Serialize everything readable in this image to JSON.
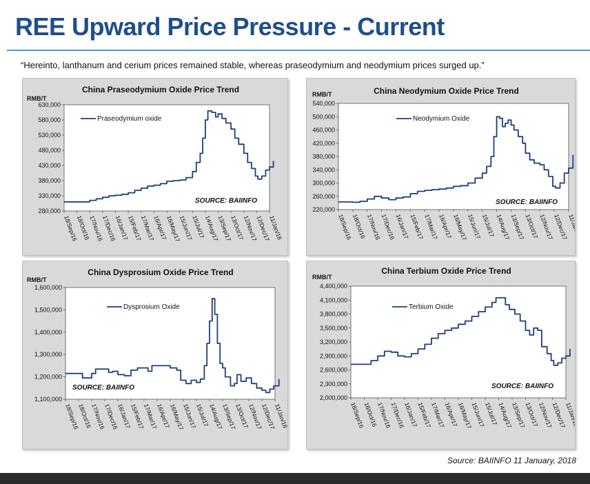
{
  "header": {
    "title": "REE Upward Price Pressure - Current",
    "quote": "“Hereinto, lanthanum and cerium prices remained stable, whereas praseodymium and neodymium prices surged up.”"
  },
  "footer": {
    "source": "Source: BAIINFO 11 January, 2018"
  },
  "colors": {
    "line": "#1f3d7a",
    "accent": "#1f4e8c",
    "rule": "#3aa0d8",
    "panel": "#d9d9d9",
    "plot": "#ffffff"
  },
  "chart_data": [
    {
      "type": "line",
      "title": "China Praseodymium Oxide Price Trend",
      "ylabel": "RMB/T",
      "series_name": "Praseodymium oxide",
      "source_label": "SOURCE: BAIINFO",
      "ylim": [
        280000,
        630000
      ],
      "yticks": [
        "630,000",
        "580,000",
        "530,000",
        "480,000",
        "430,000",
        "380,000",
        "330,000",
        "280,000"
      ],
      "ytick_values": [
        630000,
        580000,
        530000,
        480000,
        430000,
        380000,
        330000,
        280000
      ],
      "xticks": [
        "18/Sep/16",
        "18/Oct/16",
        "17/Nov/16",
        "17/Dec/16",
        "16/Jan/17",
        "15/Feb/17",
        "17/Mar/17",
        "16/Apr/17",
        "16/May/17",
        "15/Jun/17",
        "15/Jul/17",
        "14/Aug/17",
        "13/Sep/17",
        "13/Oct/17",
        "12/Nov/17",
        "12/Dec/17",
        "11/Jan/18"
      ],
      "values": [
        [
          0,
          310000
        ],
        [
          1,
          310000
        ],
        [
          2,
          315000
        ],
        [
          2.5,
          320000
        ],
        [
          3,
          325000
        ],
        [
          3.5,
          330000
        ],
        [
          4,
          332000
        ],
        [
          4.5,
          335000
        ],
        [
          5,
          340000
        ],
        [
          5.5,
          348000
        ],
        [
          6,
          355000
        ],
        [
          6.5,
          362000
        ],
        [
          7,
          365000
        ],
        [
          7.5,
          370000
        ],
        [
          8,
          378000
        ],
        [
          8.5,
          380000
        ],
        [
          9,
          382000
        ],
        [
          9.5,
          390000
        ],
        [
          10,
          410000
        ],
        [
          10.3,
          440000
        ],
        [
          10.6,
          470000
        ],
        [
          10.8,
          520000
        ],
        [
          11,
          580000
        ],
        [
          11.2,
          610000
        ],
        [
          11.5,
          605000
        ],
        [
          11.8,
          590000
        ],
        [
          12,
          600000
        ],
        [
          12.3,
          585000
        ],
        [
          12.6,
          570000
        ],
        [
          13,
          550000
        ],
        [
          13.3,
          520000
        ],
        [
          13.6,
          500000
        ],
        [
          14,
          470000
        ],
        [
          14.3,
          440000
        ],
        [
          14.6,
          420000
        ],
        [
          14.9,
          395000
        ],
        [
          15.1,
          385000
        ],
        [
          15.4,
          395000
        ],
        [
          15.7,
          415000
        ],
        [
          16,
          425000
        ],
        [
          16.3,
          445000
        ]
      ]
    },
    {
      "type": "line",
      "title": "China Neodymium Oxide Price Trend",
      "ylabel": "RMB/T",
      "series_name": "Neodymium Oxide",
      "source_label": "SOURCE: BAIINFO",
      "ylim": [
        220000,
        540000
      ],
      "yticks": [
        "540,000",
        "500,000",
        "460,000",
        "420,000",
        "380,000",
        "340,000",
        "300,000",
        "260,000",
        "220,000"
      ],
      "ytick_values": [
        540000,
        500000,
        460000,
        420000,
        380000,
        340000,
        300000,
        260000,
        220000
      ],
      "xticks": [
        "18/Sep/16",
        "18/Oct/16",
        "17/Nov/16",
        "17/Dec/16",
        "16/Jan/17",
        "15/Feb/17",
        "17/Mar/17",
        "16/Apr/17",
        "16/May/17",
        "15/Jun/17",
        "15/Jul/17",
        "14/Aug/17",
        "13/Sep/17",
        "13/Oct/17",
        "12/Nov/17",
        "12/Dec/17",
        "11/Jan/18"
      ],
      "values": [
        [
          0,
          243000
        ],
        [
          1,
          242000
        ],
        [
          1.5,
          245000
        ],
        [
          2,
          252000
        ],
        [
          2.5,
          260000
        ],
        [
          3,
          255000
        ],
        [
          3.5,
          250000
        ],
        [
          4,
          255000
        ],
        [
          4.5,
          258000
        ],
        [
          5,
          268000
        ],
        [
          5.5,
          275000
        ],
        [
          6,
          278000
        ],
        [
          6.5,
          280000
        ],
        [
          7,
          282000
        ],
        [
          7.5,
          285000
        ],
        [
          8,
          290000
        ],
        [
          8.5,
          292000
        ],
        [
          9,
          300000
        ],
        [
          9.5,
          315000
        ],
        [
          10,
          330000
        ],
        [
          10.3,
          350000
        ],
        [
          10.6,
          380000
        ],
        [
          10.8,
          440000
        ],
        [
          11,
          500000
        ],
        [
          11.2,
          495000
        ],
        [
          11.4,
          470000
        ],
        [
          11.6,
          480000
        ],
        [
          11.8,
          490000
        ],
        [
          12,
          475000
        ],
        [
          12.2,
          460000
        ],
        [
          12.5,
          440000
        ],
        [
          12.8,
          420000
        ],
        [
          13,
          390000
        ],
        [
          13.3,
          370000
        ],
        [
          13.6,
          360000
        ],
        [
          14,
          355000
        ],
        [
          14.3,
          340000
        ],
        [
          14.6,
          320000
        ],
        [
          14.9,
          290000
        ],
        [
          15.1,
          285000
        ],
        [
          15.4,
          300000
        ],
        [
          15.7,
          330000
        ],
        [
          16,
          345000
        ],
        [
          16.3,
          385000
        ]
      ]
    },
    {
      "type": "line",
      "title": "China Dysprosium Oxide Price Trend",
      "ylabel": "RMB/T",
      "series_name": "Dysprosium Oxide",
      "source_label": "SOURCE: BAIINFO",
      "ylim": [
        1100000,
        1600000
      ],
      "yticks": [
        "1,600,000",
        "1,500,000",
        "1,400,000",
        "1,300,000",
        "1,200,000",
        "1,100,000"
      ],
      "ytick_values": [
        1600000,
        1500000,
        1400000,
        1300000,
        1200000,
        1100000
      ],
      "xticks": [
        "18/Sep/16",
        "18/Oct/16",
        "17/Nov/16",
        "17/Dec/16",
        "16/Jan/17",
        "15/Feb/17",
        "17/Mar/17",
        "16/Apr/17",
        "16/May/17",
        "15/Jun/17",
        "15/Jul/17",
        "14/Aug/17",
        "13/Sep/17",
        "13/Oct/17",
        "12/Nov/17",
        "12/Dec/17",
        "11/Jan/18"
      ],
      "values": [
        [
          0,
          1215000
        ],
        [
          1,
          1215000
        ],
        [
          1.3,
          1195000
        ],
        [
          1.8,
          1195000
        ],
        [
          2,
          1215000
        ],
        [
          2.3,
          1235000
        ],
        [
          3,
          1235000
        ],
        [
          3.3,
          1220000
        ],
        [
          3.6,
          1225000
        ],
        [
          4,
          1210000
        ],
        [
          4.5,
          1205000
        ],
        [
          5,
          1230000
        ],
        [
          5.5,
          1240000
        ],
        [
          6,
          1240000
        ],
        [
          6.3,
          1225000
        ],
        [
          6.6,
          1250000
        ],
        [
          7.5,
          1250000
        ],
        [
          8,
          1240000
        ],
        [
          8.5,
          1230000
        ],
        [
          8.8,
          1185000
        ],
        [
          9.2,
          1170000
        ],
        [
          9.6,
          1185000
        ],
        [
          10,
          1175000
        ],
        [
          10.3,
          1190000
        ],
        [
          10.6,
          1250000
        ],
        [
          10.8,
          1350000
        ],
        [
          11,
          1450000
        ],
        [
          11.2,
          1550000
        ],
        [
          11.4,
          1480000
        ],
        [
          11.6,
          1350000
        ],
        [
          11.8,
          1260000
        ],
        [
          12,
          1240000
        ],
        [
          12.2,
          1200000
        ],
        [
          12.6,
          1160000
        ],
        [
          12.9,
          1170000
        ],
        [
          13.1,
          1210000
        ],
        [
          13.4,
          1180000
        ],
        [
          13.8,
          1195000
        ],
        [
          14.2,
          1170000
        ],
        [
          14.6,
          1150000
        ],
        [
          15,
          1140000
        ],
        [
          15.3,
          1130000
        ],
        [
          15.6,
          1145000
        ],
        [
          15.9,
          1160000
        ],
        [
          16.3,
          1190000
        ]
      ]
    },
    {
      "type": "line",
      "title": "China Terbium Oxide Price Trend",
      "ylabel": "RMB/T",
      "series_name": "Terbium Oxide",
      "source_label": "SOURCE: BAIINFO",
      "ylim": [
        2000000,
        4400000
      ],
      "yticks": [
        "4,400,000",
        "4,100,000",
        "3,800,000",
        "3,500,000",
        "3,200,000",
        "2,900,000",
        "2,600,000",
        "2,300,000",
        "2,000,000"
      ],
      "ytick_values": [
        4400000,
        4100000,
        3800000,
        3500000,
        3200000,
        2900000,
        2600000,
        2300000,
        2000000
      ],
      "xticks": [
        "18/Sep/16",
        "18/Oct/16",
        "17/Nov/16",
        "17/Dec/16",
        "16/Jan/17",
        "15/Feb/17",
        "17/Mar/17",
        "16/Apr/17",
        "16/May/17",
        "15/Jun/17",
        "15/Jul/17",
        "14/Aug/17",
        "13/Sep/17",
        "13/Oct/17",
        "12/Nov/17",
        "12/Dec/17",
        "11/Jan/18"
      ],
      "values": [
        [
          0,
          2720000
        ],
        [
          1,
          2720000
        ],
        [
          1.5,
          2800000
        ],
        [
          2,
          2900000
        ],
        [
          2.5,
          3000000
        ],
        [
          3,
          2980000
        ],
        [
          3.5,
          2900000
        ],
        [
          4,
          2880000
        ],
        [
          4.5,
          2950000
        ],
        [
          5,
          3050000
        ],
        [
          5.5,
          3150000
        ],
        [
          6,
          3280000
        ],
        [
          6.5,
          3380000
        ],
        [
          7,
          3450000
        ],
        [
          7.5,
          3500000
        ],
        [
          8,
          3580000
        ],
        [
          8.5,
          3650000
        ],
        [
          9,
          3750000
        ],
        [
          9.5,
          3850000
        ],
        [
          10,
          3950000
        ],
        [
          10.5,
          4050000
        ],
        [
          10.8,
          4150000
        ],
        [
          11.2,
          4150000
        ],
        [
          11.5,
          4000000
        ],
        [
          11.8,
          3900000
        ],
        [
          12.2,
          3800000
        ],
        [
          12.6,
          3650000
        ],
        [
          13,
          3450000
        ],
        [
          13.3,
          3350000
        ],
        [
          13.6,
          3500000
        ],
        [
          13.9,
          3450000
        ],
        [
          14.2,
          3100000
        ],
        [
          14.6,
          2950000
        ],
        [
          14.9,
          2800000
        ],
        [
          15.1,
          2700000
        ],
        [
          15.4,
          2750000
        ],
        [
          15.7,
          2850000
        ],
        [
          16,
          2900000
        ],
        [
          16.3,
          3050000
        ]
      ]
    }
  ]
}
